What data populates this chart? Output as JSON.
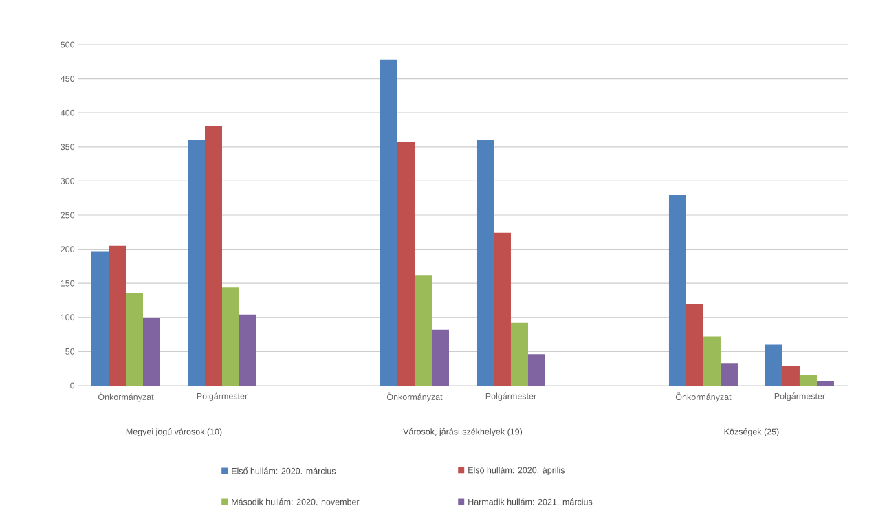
{
  "chart_data": {
    "type": "bar",
    "categories": [
      "Önkormányzat",
      "Polgármester",
      null,
      "Önkormányzat",
      "Polgármester",
      null,
      "Önkormányzat",
      "Polgármester"
    ],
    "series": [
      {
        "name": "Első hullám: 2020. március",
        "color": "#4f81bd",
        "values": [
          197,
          361,
          null,
          478,
          360,
          null,
          280,
          60
        ]
      },
      {
        "name": "Első hullám: 2020. április",
        "color": "#c0504d",
        "values": [
          205,
          380,
          null,
          357,
          224,
          null,
          119,
          29
        ]
      },
      {
        "name": "Második hullám: 2020. november",
        "color": "#9bbb59",
        "values": [
          135,
          144,
          null,
          162,
          92,
          null,
          72,
          16
        ]
      },
      {
        "name": "Harmadik hullám: 2021. március",
        "color": "#8064a2",
        "values": [
          99,
          104,
          null,
          82,
          46,
          null,
          33,
          7
        ]
      }
    ],
    "annotations": [
      "Megyei jogú városok (10)",
      "Városok, járási székhelyek (19)",
      "Községek (25)"
    ],
    "ylim": [
      0,
      500
    ],
    "yticks": [
      0,
      50,
      100,
      150,
      200,
      250,
      300,
      350,
      400,
      450,
      500
    ],
    "grid": "y",
    "legend": "bottom"
  }
}
